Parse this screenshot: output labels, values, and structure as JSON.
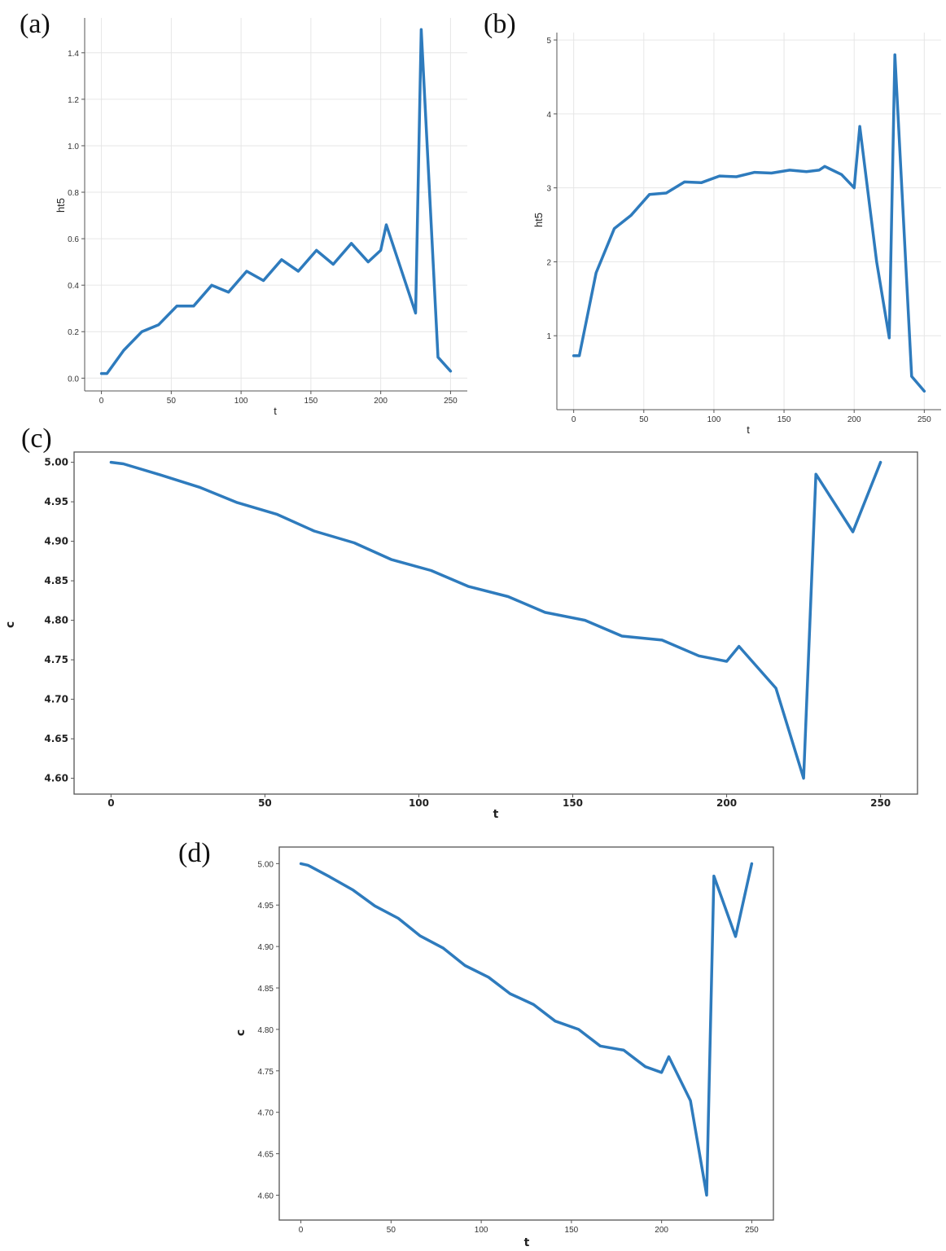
{
  "chart_data": [
    {
      "panel": "(a)",
      "type": "line",
      "xlabel": "t",
      "ylabel": "ht5",
      "xlim": [
        -12,
        262
      ],
      "ylim": [
        -0.055,
        1.55
      ],
      "xticks": [
        "0",
        "50",
        "100",
        "150",
        "200",
        "250"
      ],
      "yticks": [
        "0.0",
        "0.2",
        "0.4",
        "0.6",
        "0.8",
        "1.0",
        "1.2",
        "1.4"
      ],
      "grid": true,
      "series": [
        {
          "x": [
            0,
            4,
            16,
            29,
            41,
            54,
            66,
            79,
            91,
            104,
            116,
            129,
            141,
            154,
            166,
            179,
            191,
            200,
            204,
            225,
            229,
            241,
            250
          ],
          "y": [
            0.02,
            0.02,
            0.12,
            0.2,
            0.23,
            0.31,
            0.31,
            0.4,
            0.37,
            0.46,
            0.42,
            0.51,
            0.46,
            0.55,
            0.49,
            0.58,
            0.5,
            0.55,
            0.66,
            0.28,
            1.5,
            0.09,
            0.03
          ]
        }
      ]
    },
    {
      "panel": "(b)",
      "type": "line",
      "xlabel": "t",
      "ylabel": "ht5",
      "xlim": [
        -12,
        262
      ],
      "ylim": [
        0.0,
        5.1
      ],
      "xticks": [
        "0",
        "50",
        "100",
        "150",
        "200",
        "250"
      ],
      "yticks": [
        "1",
        "2",
        "3",
        "4",
        "5"
      ],
      "grid": true,
      "series": [
        {
          "x": [
            0,
            4,
            16,
            29,
            41,
            54,
            66,
            79,
            91,
            104,
            116,
            129,
            141,
            154,
            166,
            175,
            179,
            191,
            200,
            204,
            216,
            225,
            229,
            241,
            250
          ],
          "y": [
            0.73,
            0.73,
            1.85,
            2.45,
            2.63,
            2.91,
            2.93,
            3.08,
            3.07,
            3.16,
            3.15,
            3.21,
            3.2,
            3.24,
            3.22,
            3.24,
            3.29,
            3.18,
            3.0,
            3.83,
            2.0,
            0.97,
            4.8,
            0.45,
            0.25
          ]
        }
      ]
    },
    {
      "panel": "(c)",
      "type": "line",
      "xlabel": "t",
      "ylabel": "c",
      "xlim": [
        -12,
        262
      ],
      "ylim": [
        4.58,
        5.013
      ],
      "xticks": [
        "0",
        "50",
        "100",
        "150",
        "200",
        "250"
      ],
      "yticks": [
        "4.60",
        "4.65",
        "4.70",
        "4.75",
        "4.80",
        "4.85",
        "4.90",
        "4.95",
        "5.00"
      ],
      "grid": false,
      "series": [
        {
          "x": [
            0,
            4,
            16,
            29,
            41,
            54,
            66,
            79,
            91,
            104,
            116,
            129,
            141,
            154,
            166,
            179,
            191,
            200,
            204,
            216,
            225,
            229,
            241,
            250
          ],
          "y": [
            5.0,
            4.998,
            4.984,
            4.968,
            4.949,
            4.934,
            4.913,
            4.898,
            4.877,
            4.863,
            4.843,
            4.83,
            4.81,
            4.8,
            4.78,
            4.775,
            4.755,
            4.748,
            4.767,
            4.714,
            4.6,
            4.985,
            4.912,
            5.0
          ]
        }
      ]
    },
    {
      "panel": "(d)",
      "type": "line",
      "xlabel": "t",
      "ylabel": "c",
      "xlim": [
        -12,
        262
      ],
      "ylim": [
        4.57,
        5.02
      ],
      "xticks": [
        "0",
        "50",
        "100",
        "150",
        "200",
        "250"
      ],
      "yticks": [
        "4.60",
        "4.65",
        "4.70",
        "4.75",
        "4.80",
        "4.85",
        "4.90",
        "4.95",
        "5.00"
      ],
      "grid": false,
      "series": [
        {
          "x": [
            0,
            4,
            16,
            29,
            41,
            54,
            66,
            79,
            91,
            104,
            116,
            129,
            141,
            154,
            166,
            179,
            191,
            200,
            204,
            216,
            225,
            229,
            241,
            250
          ],
          "y": [
            5.0,
            4.998,
            4.984,
            4.968,
            4.949,
            4.934,
            4.913,
            4.898,
            4.877,
            4.863,
            4.843,
            4.83,
            4.81,
            4.8,
            4.78,
            4.775,
            4.755,
            4.748,
            4.767,
            4.714,
            4.6,
            4.985,
            4.912,
            5.0
          ]
        }
      ]
    }
  ]
}
